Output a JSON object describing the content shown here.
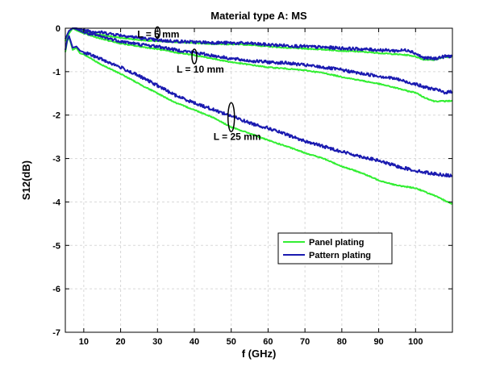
{
  "chart_data": {
    "type": "line",
    "title": "Material type A: MS",
    "xlabel": "f (GHz)",
    "ylabel": "S12(dB)",
    "xlim": [
      5,
      110
    ],
    "ylim": [
      -7,
      0
    ],
    "xticks": [
      10,
      20,
      30,
      40,
      50,
      60,
      70,
      80,
      90,
      100
    ],
    "yticks": [
      0,
      -1,
      -2,
      -3,
      -4,
      -5,
      -6,
      -7
    ],
    "grid": true,
    "legend": {
      "position": "lower-right",
      "entries": [
        {
          "label": "Panel plating",
          "color": "#33ee33"
        },
        {
          "label": "Pattern plating",
          "color": "#1a1ab0"
        }
      ]
    },
    "annotations": [
      {
        "text": "L = 5 mm",
        "x": 30,
        "y": -0.1
      },
      {
        "text": "L = 10 mm",
        "x": 40,
        "y": -0.65
      },
      {
        "text": "L = 25 mm",
        "x": 50,
        "y": -2.05
      }
    ],
    "series": [
      {
        "name": "Panel plating",
        "group": "L = 5 mm",
        "color": "#33ee33",
        "x": [
          5,
          6,
          7,
          8,
          10,
          15,
          20,
          25,
          30,
          35,
          40,
          45,
          50,
          55,
          60,
          65,
          70,
          75,
          80,
          85,
          90,
          95,
          98,
          100,
          102,
          105,
          108,
          110
        ],
        "y": [
          -0.3,
          -0.12,
          0.0,
          -0.02,
          -0.08,
          -0.16,
          -0.22,
          -0.27,
          -0.3,
          -0.32,
          -0.34,
          -0.36,
          -0.37,
          -0.38,
          -0.42,
          -0.45,
          -0.47,
          -0.49,
          -0.52,
          -0.54,
          -0.57,
          -0.6,
          -0.62,
          -0.65,
          -0.72,
          -0.73,
          -0.66,
          -0.66
        ]
      },
      {
        "name": "Pattern plating",
        "group": "L = 5 mm",
        "color": "#1a1ab0",
        "x": [
          5,
          6,
          7,
          8,
          10,
          15,
          20,
          25,
          30,
          35,
          40,
          45,
          50,
          55,
          60,
          65,
          70,
          75,
          80,
          85,
          90,
          95,
          98,
          100,
          102,
          105,
          108,
          110
        ],
        "y": [
          -0.25,
          -0.08,
          0.0,
          0.0,
          -0.04,
          -0.1,
          -0.16,
          -0.22,
          -0.28,
          -0.3,
          -0.32,
          -0.33,
          -0.34,
          -0.35,
          -0.38,
          -0.4,
          -0.42,
          -0.44,
          -0.46,
          -0.48,
          -0.5,
          -0.52,
          -0.5,
          -0.58,
          -0.68,
          -0.7,
          -0.65,
          -0.64
        ]
      },
      {
        "name": "Panel plating",
        "group": "L = 10 mm",
        "color": "#33ee33",
        "x": [
          5,
          6,
          7,
          8,
          10,
          15,
          20,
          25,
          30,
          35,
          40,
          45,
          50,
          55,
          60,
          65,
          70,
          75,
          80,
          85,
          90,
          95,
          98,
          100,
          102,
          105,
          108,
          110
        ],
        "y": [
          -0.3,
          -0.1,
          0.0,
          -0.05,
          -0.12,
          -0.25,
          -0.35,
          -0.42,
          -0.48,
          -0.56,
          -0.62,
          -0.7,
          -0.78,
          -0.84,
          -0.9,
          -0.93,
          -0.97,
          -1.03,
          -1.12,
          -1.2,
          -1.28,
          -1.38,
          -1.45,
          -1.48,
          -1.58,
          -1.68,
          -1.68,
          -1.67
        ]
      },
      {
        "name": "Pattern plating",
        "group": "L = 10 mm",
        "color": "#1a1ab0",
        "x": [
          5,
          6,
          7,
          8,
          10,
          15,
          20,
          25,
          30,
          35,
          40,
          45,
          50,
          55,
          60,
          65,
          70,
          75,
          80,
          85,
          90,
          95,
          98,
          100,
          102,
          105,
          108,
          110
        ],
        "y": [
          -0.25,
          -0.06,
          0.0,
          -0.02,
          -0.1,
          -0.2,
          -0.3,
          -0.37,
          -0.42,
          -0.5,
          -0.56,
          -0.63,
          -0.7,
          -0.75,
          -0.78,
          -0.8,
          -0.85,
          -0.9,
          -0.96,
          -1.04,
          -1.1,
          -1.17,
          -1.25,
          -1.28,
          -1.35,
          -1.4,
          -1.48,
          -1.46
        ]
      },
      {
        "name": "Panel plating",
        "group": "L = 25 mm",
        "color": "#33ee33",
        "x": [
          5,
          5.5,
          6,
          7,
          8,
          9,
          10,
          15,
          20,
          25,
          30,
          35,
          40,
          45,
          50,
          55,
          60,
          65,
          70,
          75,
          80,
          85,
          90,
          95,
          100,
          105,
          110
        ],
        "y": [
          -0.55,
          -0.3,
          -0.2,
          -0.5,
          -0.45,
          -0.58,
          -0.6,
          -0.85,
          -1.05,
          -1.28,
          -1.5,
          -1.72,
          -1.88,
          -2.05,
          -2.28,
          -2.42,
          -2.58,
          -2.72,
          -2.87,
          -3.0,
          -3.18,
          -3.32,
          -3.5,
          -3.62,
          -3.68,
          -3.85,
          -4.05
        ]
      },
      {
        "name": "Pattern plating",
        "group": "L = 25 mm",
        "color": "#1a1ab0",
        "x": [
          5,
          5.5,
          6,
          7,
          8,
          9,
          10,
          15,
          20,
          25,
          30,
          35,
          40,
          45,
          50,
          55,
          60,
          65,
          70,
          75,
          80,
          85,
          90,
          95,
          100,
          105,
          110
        ],
        "y": [
          -0.5,
          -0.28,
          -0.18,
          -0.45,
          -0.42,
          -0.52,
          -0.55,
          -0.72,
          -0.9,
          -1.1,
          -1.32,
          -1.55,
          -1.72,
          -1.87,
          -2.02,
          -2.18,
          -2.3,
          -2.45,
          -2.6,
          -2.72,
          -2.84,
          -2.95,
          -3.05,
          -3.18,
          -3.28,
          -3.35,
          -3.4
        ]
      }
    ]
  }
}
